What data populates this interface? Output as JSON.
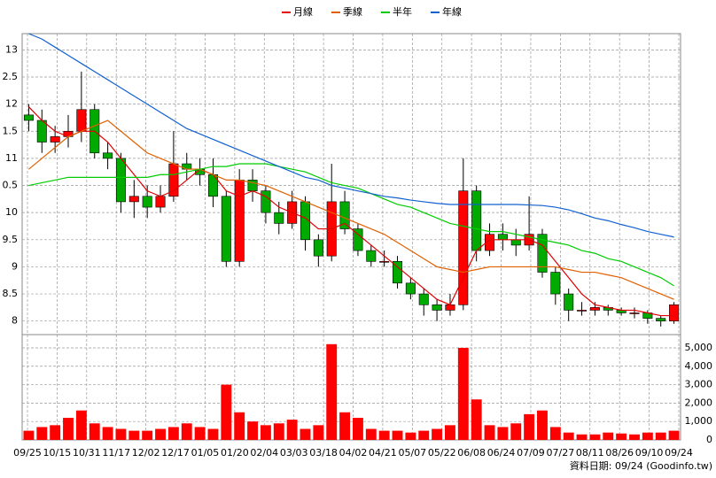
{
  "chart_data": {
    "type": "candlestick",
    "grid": true,
    "legend": "top",
    "up_color": "#ff0000",
    "down_color": "#00aa00",
    "ylim": [
      7.75,
      13.3
    ],
    "yticks": [
      8,
      8.5,
      9,
      9.5,
      10,
      {
        "value": 10.5,
        "label": "0.5"
      },
      11,
      {
        "value": 11.5,
        "label": "1.5"
      },
      12,
      {
        "value": 12.5,
        "label": "2.5"
      },
      13
    ],
    "xtick_labels": [
      "09/25",
      "10/15",
      "10/31",
      "11/17",
      "12/02",
      "12/17",
      "01/05",
      "01/20",
      "02/04",
      "03/03",
      "03/18",
      "04/02",
      "04/21",
      "05/07",
      "05/22",
      "06/08",
      "06/24",
      "07/09",
      "07/27",
      "08/11",
      "08/26",
      "09/10",
      "09/24"
    ],
    "open": [
      11.8,
      11.7,
      11.3,
      11.4,
      11.5,
      11.9,
      11.1,
      11.0,
      10.2,
      10.3,
      10.1,
      10.3,
      10.9,
      10.8,
      10.7,
      10.3,
      9.1,
      10.6,
      10.4,
      10.0,
      9.8,
      10.2,
      9.5,
      9.2,
      10.2,
      9.7,
      9.3,
      9.1,
      9.1,
      8.7,
      8.5,
      8.3,
      8.2,
      8.3,
      10.4,
      9.3,
      9.6,
      9.5,
      9.4,
      9.6,
      8.9,
      8.5,
      8.2,
      8.2,
      8.25,
      8.2,
      8.15,
      8.15,
      8.05,
      8.0
    ],
    "high": [
      12.0,
      11.9,
      11.6,
      11.8,
      12.6,
      12.0,
      11.3,
      11.1,
      10.6,
      10.5,
      10.5,
      11.5,
      11.1,
      11.0,
      11.0,
      10.4,
      10.8,
      10.8,
      10.5,
      10.2,
      10.4,
      10.3,
      9.6,
      10.9,
      10.4,
      9.8,
      9.4,
      9.3,
      9.2,
      8.8,
      8.6,
      8.4,
      8.5,
      11.0,
      10.5,
      9.8,
      9.8,
      9.7,
      10.3,
      9.7,
      9.0,
      8.6,
      8.35,
      8.35,
      8.3,
      8.25,
      8.25,
      8.2,
      8.1,
      8.35
    ],
    "low": [
      11.5,
      11.1,
      11.1,
      11.2,
      11.3,
      11.0,
      10.8,
      10.0,
      9.9,
      9.9,
      10.0,
      10.2,
      10.6,
      10.5,
      10.1,
      9.0,
      9.0,
      10.2,
      9.8,
      9.6,
      9.7,
      9.3,
      9.0,
      9.1,
      9.6,
      9.2,
      9.0,
      9.0,
      8.6,
      8.4,
      8.1,
      8.0,
      8.1,
      8.2,
      9.1,
      9.2,
      9.3,
      9.2,
      9.3,
      8.8,
      8.3,
      8.0,
      8.1,
      8.1,
      8.1,
      8.1,
      8.05,
      7.95,
      7.9,
      7.95
    ],
    "close": [
      11.7,
      11.3,
      11.4,
      11.5,
      11.9,
      11.1,
      11.0,
      10.2,
      10.3,
      10.1,
      10.3,
      10.9,
      10.8,
      10.7,
      10.3,
      9.1,
      10.6,
      10.4,
      10.0,
      9.8,
      10.2,
      9.5,
      9.2,
      10.2,
      9.7,
      9.3,
      9.1,
      9.1,
      8.7,
      8.5,
      8.3,
      8.2,
      8.3,
      10.4,
      9.3,
      9.6,
      9.5,
      9.4,
      9.6,
      8.9,
      8.5,
      8.2,
      8.2,
      8.25,
      8.2,
      8.15,
      8.15,
      8.05,
      8.0,
      8.3
    ],
    "series": [
      {
        "name": "月線",
        "color": "#e00000",
        "values": [
          11.95,
          11.7,
          11.5,
          11.4,
          11.5,
          11.5,
          11.3,
          11.0,
          10.7,
          10.4,
          10.3,
          10.4,
          10.6,
          10.8,
          10.7,
          10.4,
          10.3,
          10.4,
          10.3,
          10.1,
          10.0,
          9.9,
          9.7,
          9.7,
          9.8,
          9.6,
          9.4,
          9.2,
          9.0,
          8.8,
          8.6,
          8.4,
          8.3,
          8.8,
          9.3,
          9.5,
          9.5,
          9.5,
          9.5,
          9.4,
          9.1,
          8.8,
          8.5,
          8.3,
          8.25,
          8.2,
          8.2,
          8.15,
          8.1,
          8.1
        ]
      },
      {
        "name": "季線",
        "color": "#e06000",
        "values": [
          10.8,
          11.0,
          11.2,
          11.4,
          11.5,
          11.6,
          11.7,
          11.5,
          11.3,
          11.1,
          11.0,
          10.9,
          10.8,
          10.8,
          10.7,
          10.6,
          10.6,
          10.55,
          10.5,
          10.4,
          10.3,
          10.2,
          10.1,
          10.0,
          9.9,
          9.8,
          9.7,
          9.6,
          9.45,
          9.3,
          9.15,
          9.0,
          8.95,
          8.9,
          8.95,
          9.0,
          9.0,
          9.0,
          9.0,
          9.0,
          9.0,
          8.95,
          8.9,
          8.9,
          8.85,
          8.8,
          8.7,
          8.6,
          8.5,
          8.4
        ]
      },
      {
        "name": "半年",
        "color": "#00cc00",
        "values": [
          10.5,
          10.55,
          10.6,
          10.65,
          10.65,
          10.65,
          10.65,
          10.65,
          10.65,
          10.65,
          10.7,
          10.7,
          10.75,
          10.8,
          10.85,
          10.85,
          10.9,
          10.9,
          10.9,
          10.85,
          10.8,
          10.75,
          10.65,
          10.55,
          10.5,
          10.45,
          10.35,
          10.25,
          10.15,
          10.1,
          10.0,
          9.9,
          9.8,
          9.75,
          9.7,
          9.65,
          9.65,
          9.6,
          9.55,
          9.5,
          9.45,
          9.4,
          9.3,
          9.25,
          9.15,
          9.1,
          9.0,
          8.9,
          8.8,
          8.65
        ]
      },
      {
        "name": "年線",
        "color": "#1060d0",
        "values": [
          13.3,
          13.2,
          13.05,
          12.9,
          12.75,
          12.6,
          12.45,
          12.3,
          12.15,
          12.0,
          11.85,
          11.7,
          11.55,
          11.45,
          11.35,
          11.25,
          11.15,
          11.05,
          10.95,
          10.85,
          10.75,
          10.65,
          10.6,
          10.5,
          10.45,
          10.4,
          10.35,
          10.3,
          10.27,
          10.23,
          10.2,
          10.17,
          10.15,
          10.15,
          10.15,
          10.15,
          10.15,
          10.15,
          10.14,
          10.13,
          10.1,
          10.05,
          9.98,
          9.9,
          9.85,
          9.78,
          9.72,
          9.65,
          9.6,
          9.55
        ]
      }
    ],
    "volume": {
      "color": "#ff0000",
      "y2lim": [
        0,
        5720
      ],
      "y2ticks": [
        0,
        {
          "value": 1000,
          "label": "1,000"
        },
        {
          "value": 2000,
          "label": "2,000"
        },
        {
          "value": 3000,
          "label": "3,000"
        },
        {
          "value": 4000,
          "label": "4,000"
        },
        {
          "value": 5000,
          "label": "5,000"
        }
      ],
      "values": [
        500,
        700,
        800,
        1200,
        1600,
        900,
        700,
        600,
        500,
        500,
        600,
        700,
        900,
        700,
        600,
        3000,
        1500,
        1000,
        800,
        900,
        1100,
        600,
        800,
        5200,
        1500,
        1200,
        600,
        500,
        500,
        400,
        500,
        600,
        800,
        5000,
        2200,
        800,
        700,
        900,
        1400,
        1600,
        700,
        400,
        300,
        300,
        400,
        350,
        300,
        400,
        400,
        500
      ]
    },
    "source": "資料日期: 09/24 (Goodinfo.tw)"
  }
}
